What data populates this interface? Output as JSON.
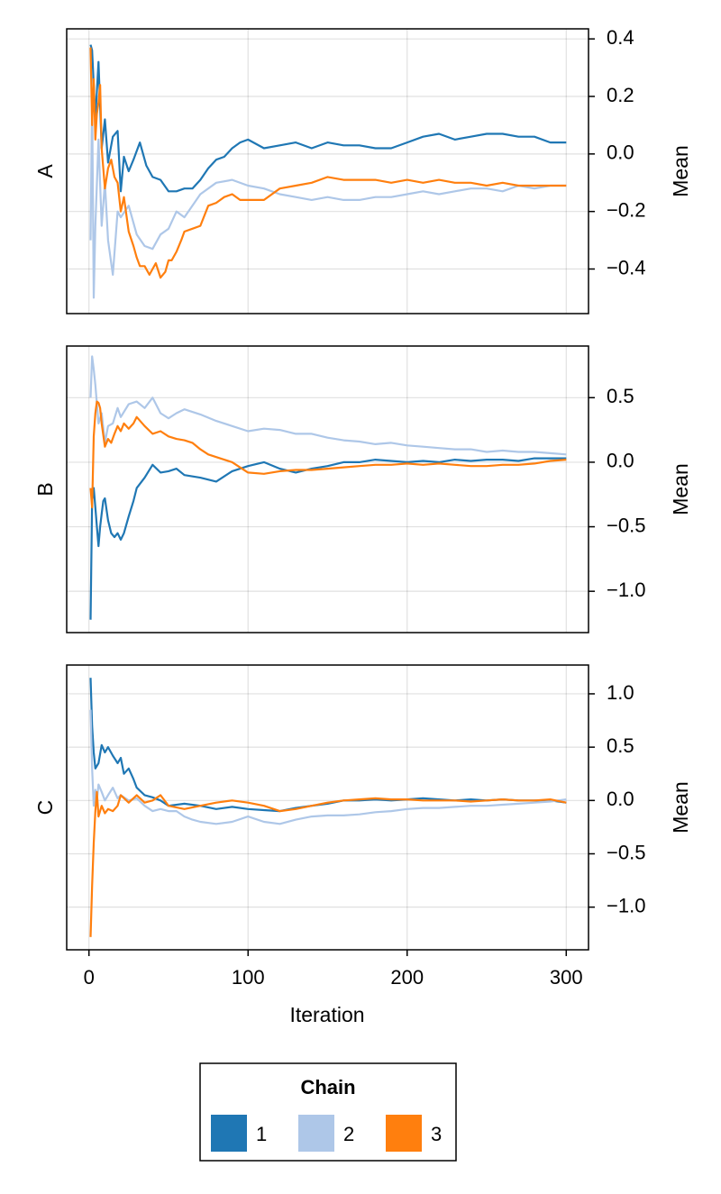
{
  "chart_data": [
    {
      "type": "line",
      "panel_label": "A",
      "ylabel": "Mean",
      "xlim": [
        -14,
        314
      ],
      "ylim": [
        -0.555,
        0.435
      ],
      "x_ticks": [
        0,
        100,
        200,
        300
      ],
      "y_ticks": [
        0.4,
        0.2,
        0.0,
        -0.2,
        -0.4
      ],
      "y_tick_labels": [
        "0.4",
        "0.2",
        "0.0",
        "−0.2",
        "−0.4"
      ],
      "grid": true,
      "series": [
        {
          "name": "1",
          "x": [
            1,
            2,
            4,
            6,
            8,
            10,
            12,
            15,
            18,
            20,
            22,
            25,
            28,
            32,
            36,
            40,
            45,
            50,
            55,
            60,
            65,
            70,
            75,
            80,
            85,
            90,
            95,
            100,
            110,
            120,
            130,
            140,
            150,
            160,
            170,
            180,
            190,
            200,
            210,
            220,
            230,
            240,
            250,
            260,
            270,
            280,
            290,
            300
          ],
          "values": [
            0.38,
            0.36,
            0.12,
            0.32,
            0.02,
            0.12,
            -0.03,
            0.06,
            0.08,
            -0.13,
            -0.01,
            -0.06,
            -0.02,
            0.04,
            -0.04,
            -0.08,
            -0.09,
            -0.13,
            -0.13,
            -0.12,
            -0.12,
            -0.09,
            -0.05,
            -0.02,
            -0.01,
            0.02,
            0.04,
            0.05,
            0.02,
            0.03,
            0.04,
            0.02,
            0.04,
            0.03,
            0.03,
            0.02,
            0.02,
            0.04,
            0.06,
            0.07,
            0.05,
            0.06,
            0.07,
            0.07,
            0.06,
            0.06,
            0.04,
            0.04
          ]
        },
        {
          "name": "2",
          "x": [
            1,
            2,
            3,
            4,
            6,
            8,
            10,
            12,
            15,
            18,
            20,
            25,
            30,
            35,
            40,
            45,
            50,
            55,
            60,
            65,
            70,
            80,
            90,
            100,
            110,
            120,
            130,
            140,
            150,
            160,
            170,
            180,
            190,
            200,
            210,
            220,
            230,
            240,
            250,
            260,
            270,
            280,
            290,
            300
          ],
          "values": [
            -0.3,
            0.2,
            -0.5,
            -0.25,
            0.05,
            -0.25,
            -0.1,
            -0.3,
            -0.42,
            -0.2,
            -0.22,
            -0.18,
            -0.28,
            -0.32,
            -0.33,
            -0.28,
            -0.26,
            -0.2,
            -0.22,
            -0.18,
            -0.14,
            -0.1,
            -0.09,
            -0.11,
            -0.12,
            -0.14,
            -0.15,
            -0.16,
            -0.15,
            -0.16,
            -0.16,
            -0.15,
            -0.15,
            -0.14,
            -0.13,
            -0.14,
            -0.13,
            -0.12,
            -0.12,
            -0.13,
            -0.11,
            -0.12,
            -0.11,
            -0.11
          ]
        },
        {
          "name": "3",
          "x": [
            1,
            2,
            3,
            4,
            5,
            6,
            7,
            8,
            9,
            10,
            12,
            14,
            16,
            18,
            20,
            22,
            25,
            28,
            30,
            32,
            35,
            38,
            40,
            42,
            45,
            48,
            50,
            52,
            55,
            58,
            60,
            65,
            70,
            75,
            80,
            85,
            90,
            95,
            100,
            110,
            120,
            130,
            140,
            150,
            160,
            170,
            180,
            190,
            200,
            210,
            220,
            230,
            240,
            250,
            260,
            270,
            280,
            290,
            300
          ],
          "values": [
            0.37,
            0.1,
            0.26,
            0.05,
            0.14,
            0.18,
            0.24,
            0.02,
            -0.05,
            -0.12,
            -0.05,
            -0.02,
            -0.08,
            -0.1,
            -0.2,
            -0.15,
            -0.27,
            -0.32,
            -0.36,
            -0.39,
            -0.39,
            -0.42,
            -0.4,
            -0.38,
            -0.43,
            -0.41,
            -0.37,
            -0.37,
            -0.34,
            -0.3,
            -0.27,
            -0.26,
            -0.25,
            -0.18,
            -0.17,
            -0.15,
            -0.14,
            -0.16,
            -0.16,
            -0.16,
            -0.12,
            -0.11,
            -0.1,
            -0.08,
            -0.09,
            -0.09,
            -0.09,
            -0.1,
            -0.09,
            -0.1,
            -0.09,
            -0.1,
            -0.1,
            -0.11,
            -0.1,
            -0.11,
            -0.11,
            -0.11,
            -0.11
          ]
        }
      ]
    },
    {
      "type": "line",
      "panel_label": "B",
      "ylabel": "Mean",
      "xlim": [
        -14,
        314
      ],
      "ylim": [
        -1.32,
        0.9
      ],
      "x_ticks": [
        0,
        100,
        200,
        300
      ],
      "y_ticks": [
        0.5,
        0.0,
        -0.5,
        -1.0
      ],
      "y_tick_labels": [
        "0.5",
        "0.0",
        "−0.5",
        "−1.0"
      ],
      "grid": true,
      "series": [
        {
          "name": "1",
          "x": [
            1,
            2,
            3,
            4,
            5,
            6,
            7,
            8,
            9,
            10,
            12,
            14,
            16,
            18,
            20,
            22,
            25,
            28,
            30,
            35,
            40,
            45,
            50,
            55,
            60,
            70,
            80,
            90,
            100,
            110,
            120,
            130,
            140,
            150,
            160,
            170,
            180,
            190,
            200,
            210,
            220,
            230,
            240,
            250,
            260,
            270,
            280,
            290,
            300
          ],
          "values": [
            -1.22,
            -0.3,
            -0.2,
            -0.35,
            -0.5,
            -0.65,
            -0.5,
            -0.4,
            -0.3,
            -0.28,
            -0.45,
            -0.55,
            -0.58,
            -0.55,
            -0.6,
            -0.55,
            -0.42,
            -0.3,
            -0.2,
            -0.12,
            -0.02,
            -0.08,
            -0.07,
            -0.05,
            -0.1,
            -0.12,
            -0.15,
            -0.07,
            -0.03,
            0.0,
            -0.05,
            -0.08,
            -0.05,
            -0.03,
            0.0,
            0.0,
            0.02,
            0.01,
            0.0,
            0.01,
            0.0,
            0.02,
            0.01,
            0.02,
            0.02,
            0.01,
            0.03,
            0.03,
            0.03
          ]
        },
        {
          "name": "2",
          "x": [
            1,
            2,
            3,
            4,
            6,
            8,
            10,
            12,
            15,
            18,
            20,
            25,
            30,
            35,
            40,
            45,
            50,
            55,
            60,
            70,
            80,
            90,
            100,
            110,
            120,
            130,
            140,
            150,
            160,
            170,
            180,
            190,
            200,
            210,
            220,
            230,
            240,
            250,
            260,
            270,
            280,
            290,
            300
          ],
          "values": [
            0.5,
            0.82,
            0.72,
            0.6,
            0.3,
            0.38,
            0.15,
            0.28,
            0.3,
            0.42,
            0.35,
            0.45,
            0.47,
            0.42,
            0.5,
            0.38,
            0.34,
            0.38,
            0.41,
            0.37,
            0.32,
            0.28,
            0.24,
            0.26,
            0.25,
            0.22,
            0.22,
            0.19,
            0.17,
            0.16,
            0.14,
            0.15,
            0.13,
            0.12,
            0.11,
            0.1,
            0.1,
            0.08,
            0.09,
            0.08,
            0.08,
            0.07,
            0.06
          ]
        },
        {
          "name": "3",
          "x": [
            1,
            2,
            3,
            4,
            5,
            6,
            7,
            8,
            10,
            12,
            14,
            16,
            18,
            20,
            22,
            25,
            28,
            30,
            35,
            40,
            45,
            50,
            55,
            60,
            65,
            70,
            75,
            80,
            90,
            100,
            110,
            120,
            130,
            140,
            150,
            160,
            170,
            180,
            190,
            200,
            210,
            220,
            230,
            240,
            250,
            260,
            270,
            280,
            290,
            300
          ],
          "values": [
            -0.2,
            -0.35,
            0.2,
            0.38,
            0.47,
            0.46,
            0.42,
            0.3,
            0.12,
            0.18,
            0.15,
            0.22,
            0.28,
            0.24,
            0.3,
            0.26,
            0.3,
            0.35,
            0.28,
            0.22,
            0.24,
            0.2,
            0.18,
            0.17,
            0.15,
            0.1,
            0.06,
            0.04,
            0.0,
            -0.08,
            -0.09,
            -0.07,
            -0.06,
            -0.06,
            -0.05,
            -0.04,
            -0.03,
            -0.02,
            -0.02,
            -0.01,
            -0.02,
            -0.01,
            -0.02,
            -0.03,
            -0.03,
            -0.02,
            -0.02,
            -0.01,
            0.01,
            0.02
          ]
        }
      ]
    },
    {
      "type": "line",
      "panel_label": "C",
      "ylabel": "Mean",
      "xlim": [
        -14,
        314
      ],
      "ylim": [
        -1.4,
        1.27
      ],
      "x_ticks": [
        0,
        100,
        200,
        300
      ],
      "x_tick_labels": [
        "0",
        "100",
        "200",
        "300"
      ],
      "y_ticks": [
        1.0,
        0.5,
        0.0,
        -0.5,
        -1.0
      ],
      "y_tick_labels": [
        "1.0",
        "0.5",
        "0.0",
        "−0.5",
        "−1.0"
      ],
      "xlabel": "Iteration",
      "grid": true,
      "series": [
        {
          "name": "1",
          "x": [
            1,
            2,
            3,
            4,
            6,
            8,
            10,
            12,
            15,
            18,
            20,
            22,
            25,
            28,
            30,
            35,
            40,
            45,
            50,
            60,
            70,
            80,
            90,
            100,
            110,
            120,
            130,
            140,
            150,
            160,
            170,
            180,
            190,
            200,
            210,
            220,
            230,
            240,
            250,
            260,
            270,
            280,
            290,
            300
          ],
          "values": [
            1.15,
            0.7,
            0.45,
            0.3,
            0.35,
            0.52,
            0.45,
            0.5,
            0.42,
            0.35,
            0.4,
            0.25,
            0.3,
            0.2,
            0.12,
            0.05,
            0.03,
            0.0,
            -0.05,
            -0.03,
            -0.05,
            -0.08,
            -0.06,
            -0.08,
            -0.09,
            -0.1,
            -0.07,
            -0.05,
            -0.03,
            0.0,
            0.0,
            0.01,
            0.0,
            0.01,
            0.02,
            0.01,
            0.0,
            0.01,
            0.0,
            0.01,
            0.0,
            0.0,
            0.0,
            -0.02
          ]
        },
        {
          "name": "2",
          "x": [
            1,
            2,
            3,
            4,
            5,
            6,
            8,
            10,
            12,
            15,
            18,
            20,
            25,
            30,
            35,
            40,
            45,
            50,
            55,
            60,
            65,
            70,
            80,
            90,
            100,
            110,
            120,
            130,
            140,
            150,
            160,
            170,
            180,
            190,
            200,
            210,
            220,
            230,
            240,
            250,
            260,
            270,
            280,
            290,
            300
          ],
          "values": [
            0.85,
            0.3,
            -0.05,
            0.1,
            0.0,
            0.15,
            0.08,
            0.0,
            0.05,
            0.12,
            0.02,
            0.05,
            0.0,
            0.02,
            -0.05,
            -0.1,
            -0.08,
            -0.1,
            -0.1,
            -0.15,
            -0.18,
            -0.2,
            -0.22,
            -0.2,
            -0.15,
            -0.2,
            -0.22,
            -0.18,
            -0.15,
            -0.14,
            -0.14,
            -0.13,
            -0.11,
            -0.1,
            -0.08,
            -0.07,
            -0.07,
            -0.06,
            -0.05,
            -0.05,
            -0.04,
            -0.03,
            -0.02,
            -0.01,
            0.01
          ]
        },
        {
          "name": "3",
          "x": [
            1,
            2,
            3,
            4,
            5,
            6,
            8,
            10,
            12,
            15,
            18,
            20,
            25,
            30,
            35,
            40,
            45,
            50,
            60,
            70,
            80,
            90,
            100,
            110,
            120,
            130,
            140,
            150,
            160,
            170,
            180,
            190,
            200,
            210,
            220,
            230,
            240,
            250,
            260,
            270,
            280,
            290,
            300
          ],
          "values": [
            -1.28,
            -0.8,
            -0.4,
            -0.1,
            0.08,
            -0.15,
            -0.05,
            -0.12,
            -0.08,
            -0.1,
            -0.05,
            0.05,
            -0.02,
            0.05,
            -0.02,
            0.0,
            0.05,
            -0.05,
            -0.08,
            -0.05,
            -0.02,
            0.0,
            -0.02,
            -0.05,
            -0.1,
            -0.08,
            -0.05,
            -0.02,
            0.0,
            0.01,
            0.02,
            0.01,
            0.01,
            0.0,
            0.0,
            0.0,
            -0.01,
            0.0,
            0.01,
            0.0,
            0.0,
            0.01,
            -0.02
          ]
        }
      ]
    }
  ],
  "colors": {
    "1": "#1f77b4",
    "2": "#aec7e8",
    "3": "#ff7f0e"
  },
  "legend": {
    "title": "Chain",
    "items": [
      {
        "label": "1",
        "color": "#1f77b4"
      },
      {
        "label": "2",
        "color": "#aec7e8"
      },
      {
        "label": "3",
        "color": "#ff7f0e"
      }
    ]
  }
}
